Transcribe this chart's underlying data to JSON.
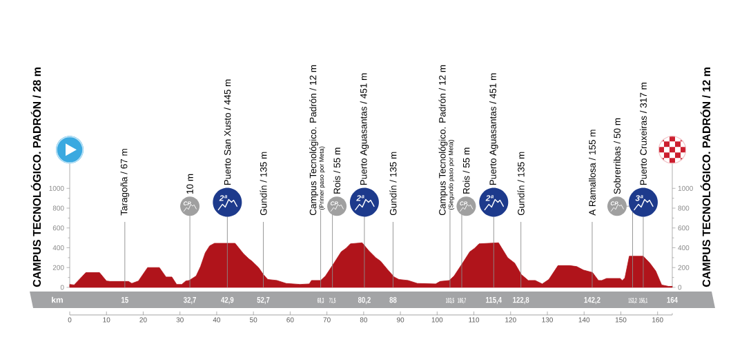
{
  "chart_data": {
    "type": "area",
    "ylabel": "CAMPUS TECNOLÓGICO. PADRÓN / 28 m",
    "y2label": "CAMPUS TECNOLÓGICO. PADRÓN / 12 m",
    "x2label": "km",
    "color": "#b0141b",
    "x": [
      0,
      1.2,
      4.4,
      8.1,
      10,
      11,
      16,
      16.9,
      18.7,
      21.2,
      24.4,
      26.2,
      27.8,
      29.1,
      30.5,
      31.6,
      32.5,
      34.4,
      35.6,
      36.9,
      38.1,
      39.4,
      45,
      47.3,
      48.7,
      49.6,
      51.4,
      52.7,
      53.9,
      56.4,
      58.9,
      62.7,
      65.2,
      65.8,
      68.3,
      69.6,
      72.1,
      73.9,
      75.2,
      76.4,
      79.6,
      81.4,
      83.3,
      84.6,
      86.4,
      88.3,
      89.6,
      92.1,
      94.6,
      99.6,
      100.8,
      103.3,
      104.6,
      107.1,
      108.9,
      110.2,
      111.4,
      116.7,
      119.2,
      121.1,
      122.9,
      124.8,
      126.7,
      128.6,
      130.4,
      132.9,
      136.1,
      138,
      139.8,
      142.3,
      143.9,
      144.8,
      146.1,
      149.8,
      150.4,
      151.1,
      152.3,
      156.1,
      157.9,
      159.5,
      161.1,
      163,
      164
    ],
    "values": [
      30,
      25,
      150,
      150,
      65,
      60,
      60,
      40,
      65,
      200,
      200,
      105,
      105,
      30,
      30,
      65,
      70,
      115,
      210,
      350,
      420,
      445,
      445,
      340,
      290,
      265,
      200,
      130,
      80,
      70,
      40,
      30,
      35,
      70,
      70,
      115,
      255,
      360,
      395,
      440,
      450,
      370,
      300,
      265,
      185,
      105,
      80,
      70,
      40,
      35,
      60,
      70,
      115,
      255,
      360,
      395,
      440,
      450,
      300,
      245,
      130,
      70,
      70,
      35,
      80,
      220,
      220,
      210,
      175,
      150,
      70,
      70,
      90,
      90,
      70,
      95,
      315,
      315,
      245,
      165,
      25,
      10,
      10
    ],
    "xlim": [
      0,
      164
    ],
    "xticks": [
      0,
      10,
      20,
      30,
      40,
      50,
      60,
      70,
      80,
      90,
      100,
      110,
      120,
      130,
      140,
      150,
      160,
      {
        "value": 164,
        "label": null
      }
    ],
    "ylim": [
      0,
      1250
    ],
    "yticks": [
      0,
      {
        "value": 100,
        "label": null
      },
      200,
      {
        "value": 300,
        "label": null
      },
      400,
      {
        "value": 500,
        "label": null
      },
      600,
      {
        "value": 700,
        "label": null
      },
      800,
      {
        "value": 900,
        "label": null
      },
      1000
    ],
    "y2lim": [
      0,
      1250
    ],
    "y2ticks": [
      0,
      {
        "value": 100,
        "label": null
      },
      200,
      {
        "value": 300,
        "label": null
      },
      400,
      {
        "value": 500,
        "label": null
      },
      600,
      {
        "value": 700,
        "label": null
      },
      800,
      {
        "value": 900,
        "label": null
      },
      1000
    ],
    "x2lim": [
      0,
      164
    ],
    "x2ticks": [
      15,
      {
        "value": 32.7,
        "label": "32,7"
      },
      {
        "value": 42.9,
        "label": "42,9"
      },
      {
        "value": 52.7,
        "label": "52,7"
      },
      {
        "value": 68.3,
        "label": "68,3"
      },
      {
        "value": 71.5,
        "label": "71,5"
      },
      {
        "value": 80.2,
        "label": "80,2"
      },
      88,
      {
        "value": 103.5,
        "label": "103,5"
      },
      {
        "value": 106.7,
        "label": "106,7"
      },
      {
        "value": 115.4,
        "label": "115,4"
      },
      {
        "value": 122.8,
        "label": "122,8"
      },
      {
        "value": 142.2,
        "label": "142,2"
      },
      {
        "value": 153.2,
        "label": "153,2"
      },
      {
        "value": 156.1,
        "label": "156,1"
      },
      164
    ],
    "ref_lines": [
      {
        "axis": "x",
        "value": 15,
        "label": "Taragoña / 67 m"
      },
      {
        "axis": "x",
        "value": 32.7,
        "label": "10 m"
      },
      {
        "axis": "x",
        "value": 42.9,
        "label": "Puerto San Xusto / 445 m"
      },
      {
        "axis": "x",
        "value": 52.7,
        "label": "Gundín / 135 m"
      },
      {
        "axis": "x",
        "value": 68.3,
        "label": "Campus Tecnológico. Padrón / 12 m"
      },
      {
        "axis": "x",
        "value": 71.5,
        "label": "Rois / 55 m"
      },
      {
        "axis": "x",
        "value": 80.2,
        "label": "Puerto Aguasantas / 451 m"
      },
      {
        "axis": "x",
        "value": 88,
        "label": "Gundín / 135 m"
      },
      {
        "axis": "x",
        "value": 103.5,
        "label": "Campus Tecnológico. Padrón / 12 m"
      },
      {
        "axis": "x",
        "value": 106.7,
        "label": "Rois / 55 m"
      },
      {
        "axis": "x",
        "value": 115.4,
        "label": "Puerto Aguasantas / 451 m"
      },
      {
        "axis": "x",
        "value": 122.8,
        "label": "Gundín / 135 m"
      },
      {
        "axis": "x",
        "value": 142.2,
        "label": "A Ramallosa / 155 m"
      },
      {
        "axis": "x",
        "value": 153.2,
        "label": "Sobrerribas / 50 m"
      },
      {
        "axis": "x",
        "value": 156.1,
        "label": "Puerto Cruxeiras / 317 m"
      }
    ],
    "annotations": [
      {
        "text": "CP",
        "x": 32.7,
        "y": 820
      },
      {
        "text": "2ª",
        "x": 42.9,
        "y": 860
      },
      {
        "text": "(Primer paso por Meta)",
        "x": 68.3,
        "y": 780
      },
      {
        "text": "CP",
        "x": 71.5,
        "y": 820
      },
      {
        "text": "2ª",
        "x": 80.2,
        "y": 860
      },
      {
        "text": "(Segundo paso por Meta)",
        "x": 103.5,
        "y": 780
      },
      {
        "text": "CP",
        "x": 106.7,
        "y": 820
      },
      {
        "text": "2ª",
        "x": 115.4,
        "y": 860
      },
      {
        "text": "CP",
        "x": 153.2,
        "y": 820
      },
      {
        "text": "3ª",
        "x": 156.1,
        "y": 860
      }
    ]
  }
}
